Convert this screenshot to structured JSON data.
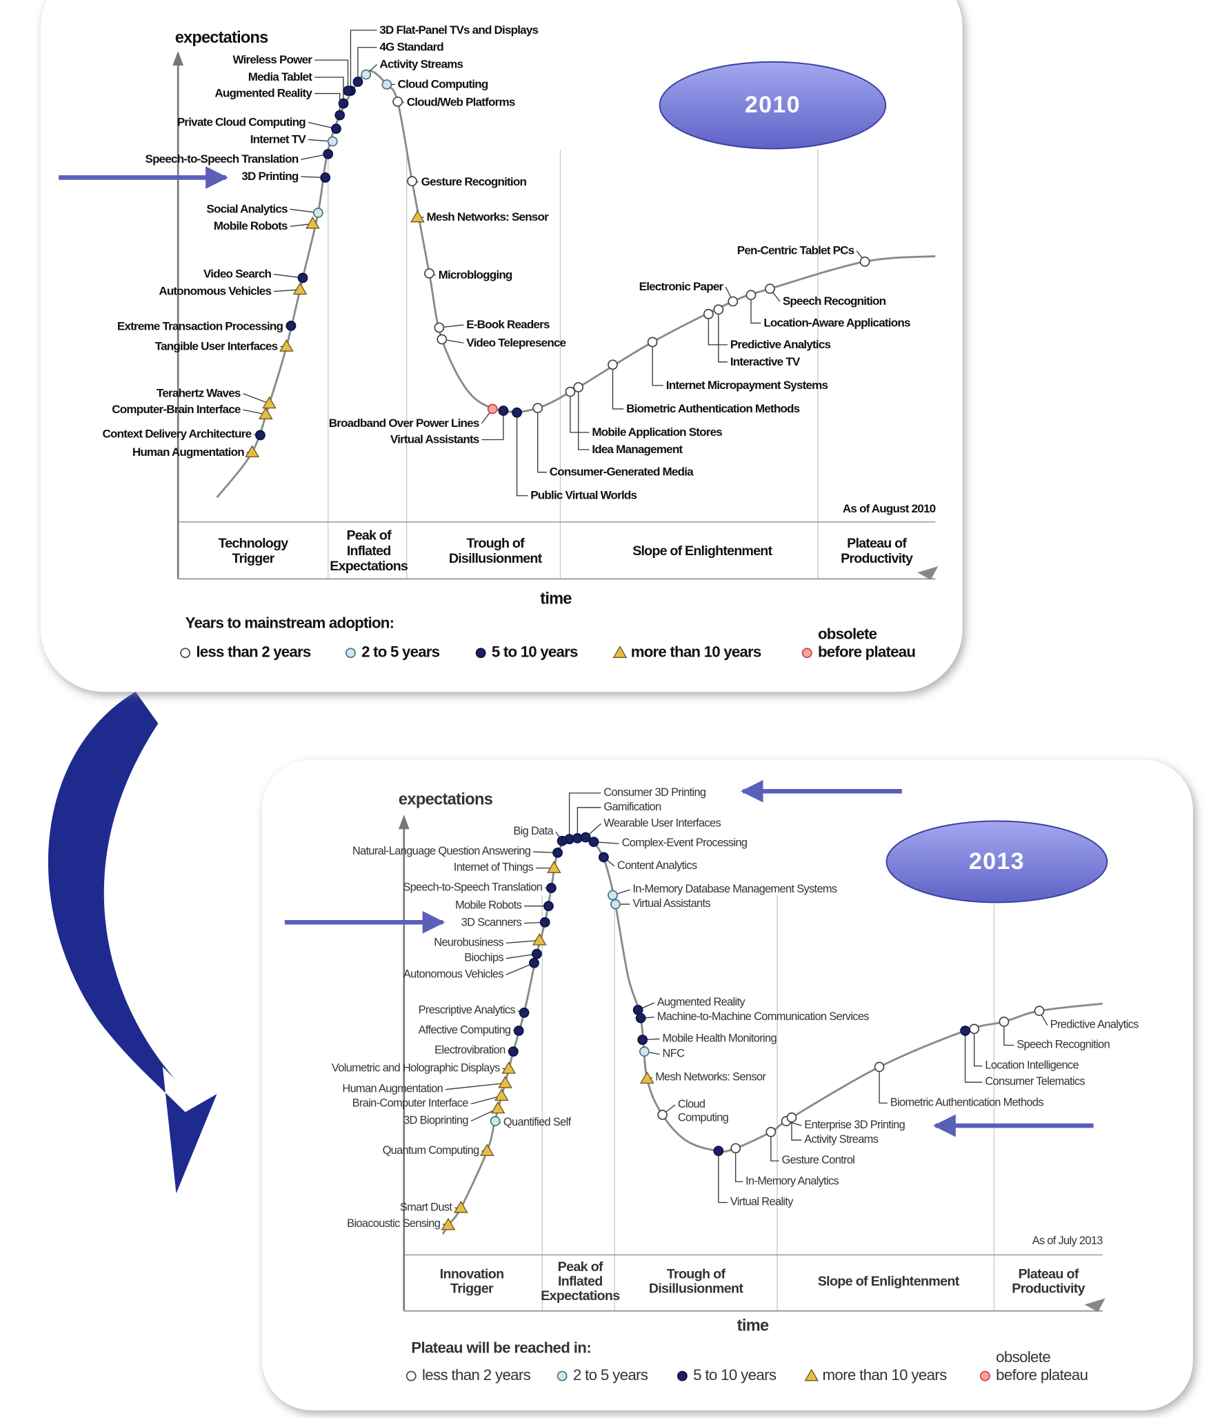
{
  "panels": [
    {
      "badge": "2010",
      "y_axis_label": "expectations",
      "x_axis_label": "time",
      "as_of": "As of August 2010",
      "phases": [
        [
          "Technology",
          "Trigger"
        ],
        [
          "Peak of",
          "Inflated",
          "Expectations"
        ],
        [
          "Trough of",
          "Disillusionment"
        ],
        [
          "Slope of Enlightenment"
        ],
        [
          "Plateau of",
          "Productivity"
        ]
      ],
      "legend": {
        "title": "Years to mainstream adoption:",
        "items": [
          [
            "less than 2 years"
          ],
          [
            "2 to 5 years"
          ],
          [
            "5 to 10 years"
          ],
          [
            "more than 10 years"
          ],
          [
            "obsolete",
            "before plateau"
          ]
        ]
      },
      "technologies": [
        {
          "name": "3D Flat-Panel TVs and Displays",
          "marker": 2
        },
        {
          "name": "4G Standard",
          "marker": 2
        },
        {
          "name": "Activity Streams",
          "marker": 1
        },
        {
          "name": "Cloud Computing",
          "marker": 1
        },
        {
          "name": "Cloud/Web Platforms",
          "marker": 0
        },
        {
          "name": "Wireless Power",
          "marker": 2
        },
        {
          "name": "Media Tablet",
          "marker": 2
        },
        {
          "name": "Augmented Reality",
          "marker": 2
        },
        {
          "name": "Private Cloud Computing",
          "marker": 2
        },
        {
          "name": "Internet TV",
          "marker": 1
        },
        {
          "name": "Speech-to-Speech Translation",
          "marker": 2
        },
        {
          "name": "3D Printing",
          "marker": 2
        },
        {
          "name": "Social Analytics",
          "marker": 1
        },
        {
          "name": "Mobile Robots",
          "marker": 3
        },
        {
          "name": "Video Search",
          "marker": 2
        },
        {
          "name": "Autonomous Vehicles",
          "marker": 3
        },
        {
          "name": "Extreme Transaction Processing",
          "marker": 2
        },
        {
          "name": "Tangible User Interfaces",
          "marker": 3
        },
        {
          "name": "Terahertz Waves",
          "marker": 3
        },
        {
          "name": "Computer-Brain Interface",
          "marker": 3
        },
        {
          "name": "Context Delivery Architecture",
          "marker": 2
        },
        {
          "name": "Human Augmentation",
          "marker": 3
        },
        {
          "name": "Gesture Recognition",
          "marker": 0
        },
        {
          "name": "Mesh Networks: Sensor",
          "marker": 3
        },
        {
          "name": "Microblogging",
          "marker": 0
        },
        {
          "name": "E-Book Readers",
          "marker": 0
        },
        {
          "name": "Video Telepresence",
          "marker": 0
        },
        {
          "name": "Broadband Over Power Lines",
          "marker": 4
        },
        {
          "name": "Virtual Assistants",
          "marker": 2
        },
        {
          "name": "Public Virtual Worlds",
          "marker": 2
        },
        {
          "name": "Consumer-Generated Media",
          "marker": 0
        },
        {
          "name": "Mobile Application Stores",
          "marker": 0
        },
        {
          "name": "Idea Management",
          "marker": 0
        },
        {
          "name": "Biometric Authentication Methods",
          "marker": 0
        },
        {
          "name": "Internet Micropayment Systems",
          "marker": 0
        },
        {
          "name": "Predictive Analytics",
          "marker": 0
        },
        {
          "name": "Interactive TV",
          "marker": 0
        },
        {
          "name": "Electronic Paper",
          "marker": 0
        },
        {
          "name": "Location-Aware Applications",
          "marker": 0
        },
        {
          "name": "Speech Recognition",
          "marker": 0
        },
        {
          "name": "Pen-Centric Tablet PCs",
          "marker": 0
        }
      ]
    },
    {
      "badge": "2013",
      "y_axis_label": "expectations",
      "x_axis_label": "time",
      "as_of": "As of July 2013",
      "phases": [
        [
          "Innovation",
          "Trigger"
        ],
        [
          "Peak of",
          "Inflated",
          "Expectations"
        ],
        [
          "Trough of",
          "Disillusionment"
        ],
        [
          "Slope of Enlightenment"
        ],
        [
          "Plateau of",
          "Productivity"
        ]
      ],
      "legend": {
        "title": "Plateau will be reached in:",
        "items": [
          [
            "less than 2 years"
          ],
          [
            "2 to 5 years"
          ],
          [
            "5 to 10 years"
          ],
          [
            "more than 10 years"
          ],
          [
            "obsolete",
            "before plateau"
          ]
        ]
      },
      "technologies": [
        {
          "name": "Consumer 3D Printing",
          "marker": 2
        },
        {
          "name": "Gamification",
          "marker": 2
        },
        {
          "name": "Wearable User Interfaces",
          "marker": 2
        },
        {
          "name": "Complex-Event Processing",
          "marker": 2
        },
        {
          "name": "Content Analytics",
          "marker": 2
        },
        {
          "name": "In-Memory Database Management Systems",
          "marker": 1
        },
        {
          "name": "Virtual Assistants",
          "marker": 1
        },
        {
          "name": "Big Data",
          "marker": 2
        },
        {
          "name": "Natural-Language Question Answering",
          "marker": 2
        },
        {
          "name": "Internet of Things",
          "marker": 3
        },
        {
          "name": "Speech-to-Speech Translation",
          "marker": 2
        },
        {
          "name": "Mobile Robots",
          "marker": 2
        },
        {
          "name": "3D Scanners",
          "marker": 2
        },
        {
          "name": "Neurobusiness",
          "marker": 3
        },
        {
          "name": "Biochips",
          "marker": 2
        },
        {
          "name": "Autonomous Vehicles",
          "marker": 2
        },
        {
          "name": "Prescriptive Analytics",
          "marker": 2
        },
        {
          "name": "Affective Computing",
          "marker": 2
        },
        {
          "name": "Electrovibration",
          "marker": 2
        },
        {
          "name": "Volumetric and Holographic Displays",
          "marker": 3
        },
        {
          "name": "Human Augmentation",
          "marker": 3
        },
        {
          "name": "Brain-Computer Interface",
          "marker": 3
        },
        {
          "name": "3D Bioprinting",
          "marker": 3
        },
        {
          "name": "Quantified Self",
          "marker": 1
        },
        {
          "name": "Quantum Computing",
          "marker": 3
        },
        {
          "name": "Smart Dust",
          "marker": 3
        },
        {
          "name": "Bioacoustic Sensing",
          "marker": 3
        },
        {
          "name": "Augmented Reality",
          "marker": 2
        },
        {
          "name": "Machine-to-Machine Communication Services",
          "marker": 2
        },
        {
          "name": "Mobile Health Monitoring",
          "marker": 2
        },
        {
          "name": "NFC",
          "marker": 1
        },
        {
          "name": "Mesh Networks: Sensor",
          "marker": 3
        },
        {
          "name": [
            "Cloud",
            "Computing"
          ],
          "marker": 0
        },
        {
          "name": "Virtual Reality",
          "marker": 2
        },
        {
          "name": "In-Memory Analytics",
          "marker": 0
        },
        {
          "name": "Gesture Control",
          "marker": 0
        },
        {
          "name": "Enterprise 3D Printing",
          "marker": 0
        },
        {
          "name": "Activity Streams",
          "marker": 0
        },
        {
          "name": "Biometric Authentication Methods",
          "marker": 0
        },
        {
          "name": "Location Intelligence",
          "marker": 0
        },
        {
          "name": "Consumer Telematics",
          "marker": 2
        },
        {
          "name": "Speech Recognition",
          "marker": 0
        },
        {
          "name": "Predictive Analytics",
          "marker": 0
        }
      ]
    }
  ]
}
